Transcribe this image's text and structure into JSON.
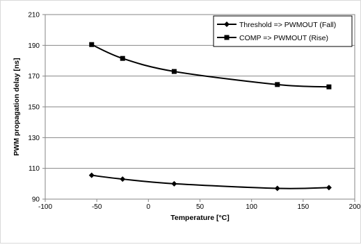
{
  "chart_data": {
    "type": "line",
    "title": "",
    "xlabel": "Temperature [°C]",
    "ylabel": "PWM propagation delay [ns]",
    "xlim": [
      -100,
      200
    ],
    "ylim": [
      90,
      210
    ],
    "xticks": [
      -100,
      -50,
      0,
      50,
      100,
      150,
      200
    ],
    "yticks": [
      90,
      110,
      130,
      150,
      170,
      190,
      210
    ],
    "grid": "horizontal",
    "legend_position": "top-right",
    "series": [
      {
        "name": "Threshold => PWMOUT (Fall)",
        "marker": "diamond",
        "color": "#000000",
        "x": [
          -55,
          -25,
          25,
          125,
          175
        ],
        "y": [
          105.5,
          103,
          100,
          97,
          97.5
        ]
      },
      {
        "name": "COMP => PWMOUT (Rise)",
        "marker": "square",
        "color": "#000000",
        "x": [
          -55,
          -25,
          25,
          125,
          175
        ],
        "y": [
          190.5,
          181.5,
          173,
          164.5,
          163
        ]
      }
    ]
  }
}
